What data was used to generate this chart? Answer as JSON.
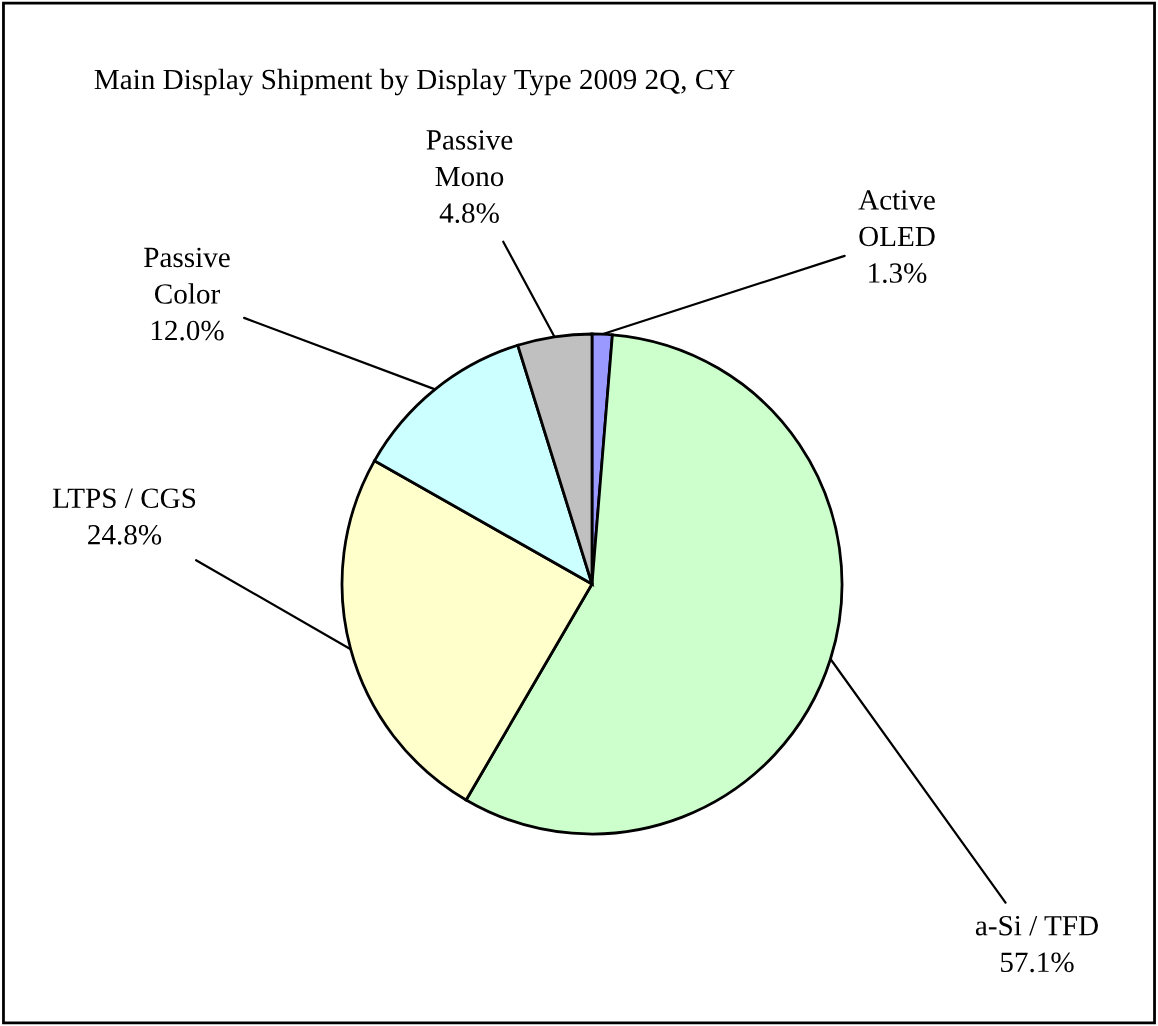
{
  "chart_data": {
    "type": "pie",
    "title": "Main Display Shipment by Display Type 2009 2Q, CY",
    "categories": [
      "Active\nOLED",
      "a-Si / TFD",
      "LTPS / CGS",
      "Passive\nColor",
      "Passive\nMono"
    ],
    "values": [
      1.3,
      57.1,
      24.8,
      12.0,
      4.8
    ],
    "value_labels": [
      "1.3%",
      "57.1%",
      "24.8%",
      "12.0%",
      "4.8%"
    ],
    "colors": [
      "#9999ff",
      "#ccffcc",
      "#ffffcc",
      "#ccffff",
      "#c0c0c0"
    ]
  }
}
